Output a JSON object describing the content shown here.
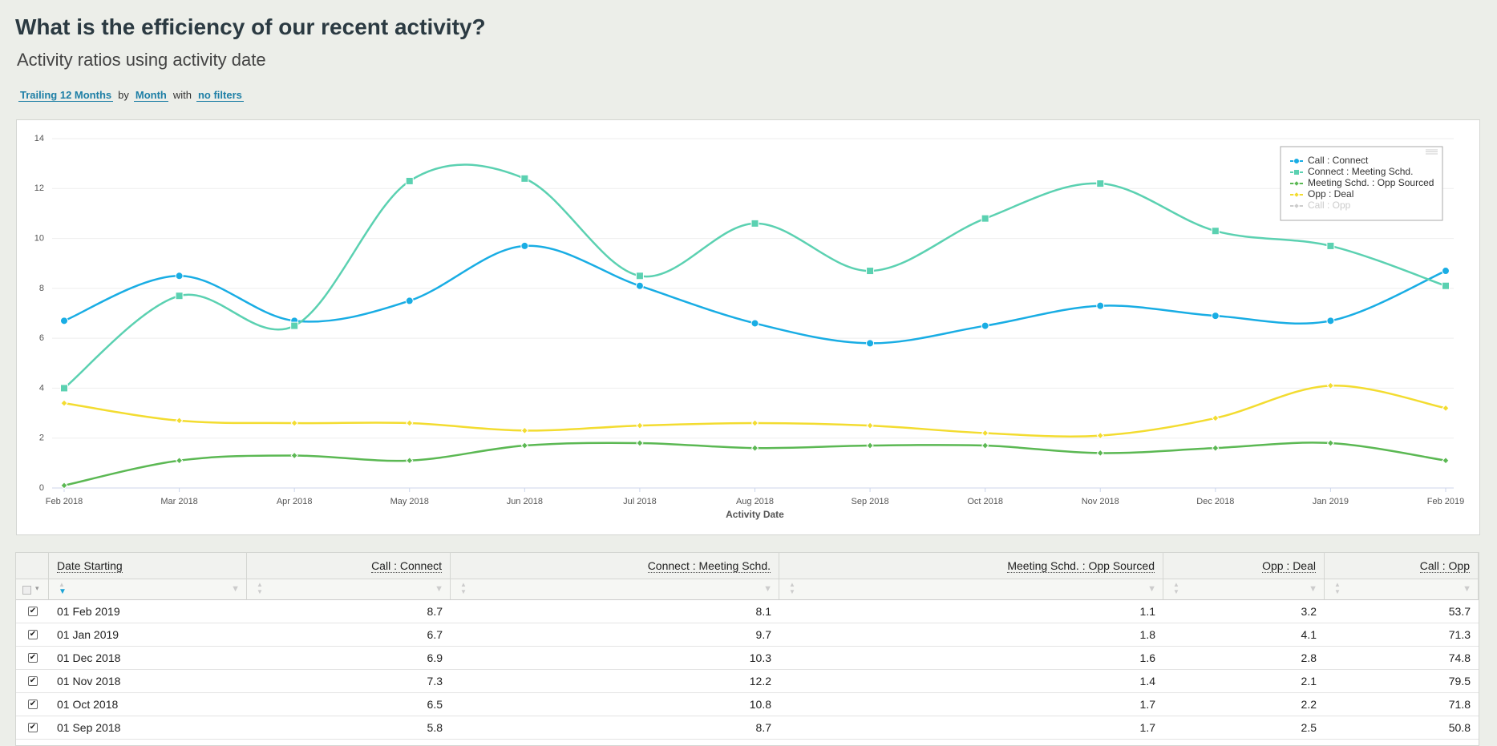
{
  "header": {
    "title": "What is the efficiency of our recent activity?",
    "subtitle": "Activity ratios using activity date",
    "filters": {
      "range": "Trailing 12 Months",
      "by": "by",
      "group": "Month",
      "with": "with",
      "filter": "no filters"
    }
  },
  "chart_data": {
    "type": "line",
    "categories": [
      "Feb 2018",
      "Mar 2018",
      "Apr 2018",
      "May 2018",
      "Jun 2018",
      "Jul 2018",
      "Aug 2018",
      "Sep 2018",
      "Oct 2018",
      "Nov 2018",
      "Dec 2018",
      "Jan 2019",
      "Feb 2019"
    ],
    "xlabel": "Activity Date",
    "ylim": [
      0,
      14
    ],
    "yticks": [
      0,
      2,
      4,
      6,
      8,
      10,
      12,
      14
    ],
    "grid": true,
    "legend": "upper right",
    "smooth": true,
    "series": [
      {
        "name": "Call : Connect",
        "color": "#19ade4",
        "marker": "circle",
        "values": [
          6.7,
          8.5,
          6.7,
          7.5,
          9.7,
          8.1,
          6.6,
          5.8,
          6.5,
          7.3,
          6.9,
          6.7,
          8.7
        ]
      },
      {
        "name": "Connect : Meeting Schd.",
        "color": "#5bd1b1",
        "marker": "square",
        "values": [
          4.0,
          7.7,
          6.5,
          12.3,
          12.4,
          8.5,
          10.6,
          8.7,
          10.8,
          12.2,
          10.3,
          9.7,
          8.1
        ]
      },
      {
        "name": "Meeting Schd. : Opp Sourced",
        "color": "#5bb853",
        "marker": "diamond",
        "values": [
          0.1,
          1.1,
          1.3,
          1.1,
          1.7,
          1.8,
          1.6,
          1.7,
          1.7,
          1.4,
          1.6,
          1.8,
          1.1
        ]
      },
      {
        "name": "Opp : Deal",
        "color": "#f3dc30",
        "marker": "diamond",
        "values": [
          3.4,
          2.7,
          2.6,
          2.6,
          2.3,
          2.5,
          2.6,
          2.5,
          2.2,
          2.1,
          2.8,
          4.1,
          3.2
        ]
      },
      {
        "name": "Call : Opp",
        "color": "#cccccc",
        "marker": "diamond",
        "visible": false
      }
    ]
  },
  "table": {
    "columns": [
      "Date Starting",
      "Call : Connect",
      "Connect : Meeting Schd.",
      "Meeting Schd. : Opp Sourced",
      "Opp : Deal",
      "Call : Opp"
    ],
    "rows": [
      [
        "01 Feb 2019",
        8.7,
        8.1,
        1.1,
        3.2,
        53.7
      ],
      [
        "01 Jan 2019",
        6.7,
        9.7,
        1.8,
        4.1,
        71.3
      ],
      [
        "01 Dec 2018",
        6.9,
        10.3,
        1.6,
        2.8,
        74.8
      ],
      [
        "01 Nov 2018",
        7.3,
        12.2,
        1.4,
        2.1,
        79.5
      ],
      [
        "01 Oct 2018",
        6.5,
        10.8,
        1.7,
        2.2,
        71.8
      ],
      [
        "01 Sep 2018",
        5.8,
        8.7,
        1.7,
        2.5,
        50.8
      ]
    ]
  }
}
